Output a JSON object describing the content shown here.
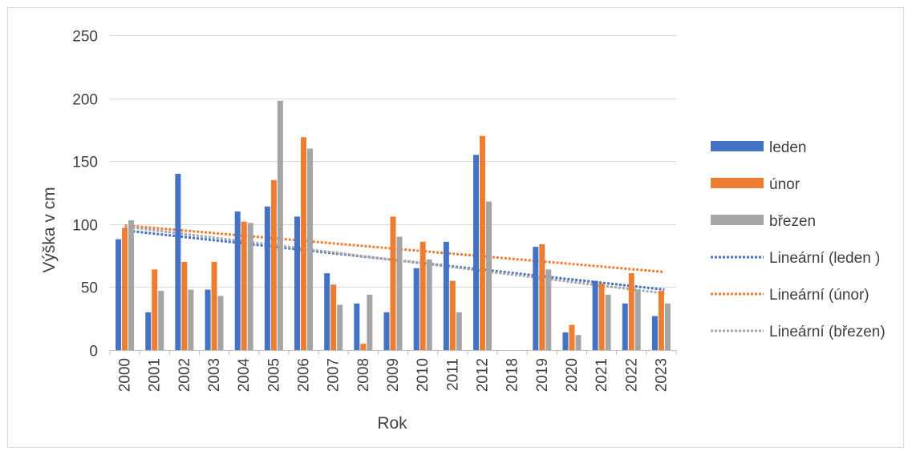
{
  "chart_data": {
    "type": "bar",
    "title": "",
    "xlabel": "Rok",
    "ylabel": "Výška v cm",
    "ylim": [
      0,
      250
    ],
    "yticks": [
      0,
      50,
      100,
      150,
      200,
      250
    ],
    "grid": true,
    "legend_position": "right",
    "categories": [
      "2000",
      "2001",
      "2002",
      "2003",
      "2004",
      "2005",
      "2006",
      "2007",
      "2008",
      "2009",
      "2010",
      "2011",
      "2012",
      "2018",
      "2019",
      "2020",
      "2021",
      "2022",
      "2023"
    ],
    "series": [
      {
        "name": "leden",
        "color": "#4472c4",
        "values": [
          88,
          30,
          140,
          48,
          110,
          114,
          106,
          61,
          37,
          30,
          65,
          86,
          155,
          null,
          82,
          14,
          55,
          37,
          27
        ]
      },
      {
        "name": "únor",
        "color": "#ed7d31",
        "values": [
          97,
          64,
          70,
          70,
          102,
          135,
          169,
          52,
          5,
          106,
          86,
          55,
          170,
          null,
          84,
          20,
          53,
          61,
          47
        ]
      },
      {
        "name": "březen",
        "color": "#a5a5a5",
        "values": [
          103,
          47,
          48,
          43,
          101,
          198,
          160,
          36,
          44,
          90,
          72,
          30,
          118,
          null,
          64,
          12,
          44,
          48,
          37
        ]
      }
    ],
    "trendlines": [
      {
        "name": "Lineární (leden )",
        "series": "leden",
        "color": "#4472c4",
        "start": 95,
        "end": 48
      },
      {
        "name": "Lineární (únor)",
        "series": "únor",
        "color": "#ed7d31",
        "start": 99,
        "end": 62
      },
      {
        "name": "Lineární (březen)",
        "series": "březen",
        "color": "#a5a5a5",
        "start": 98,
        "end": 45
      }
    ]
  }
}
